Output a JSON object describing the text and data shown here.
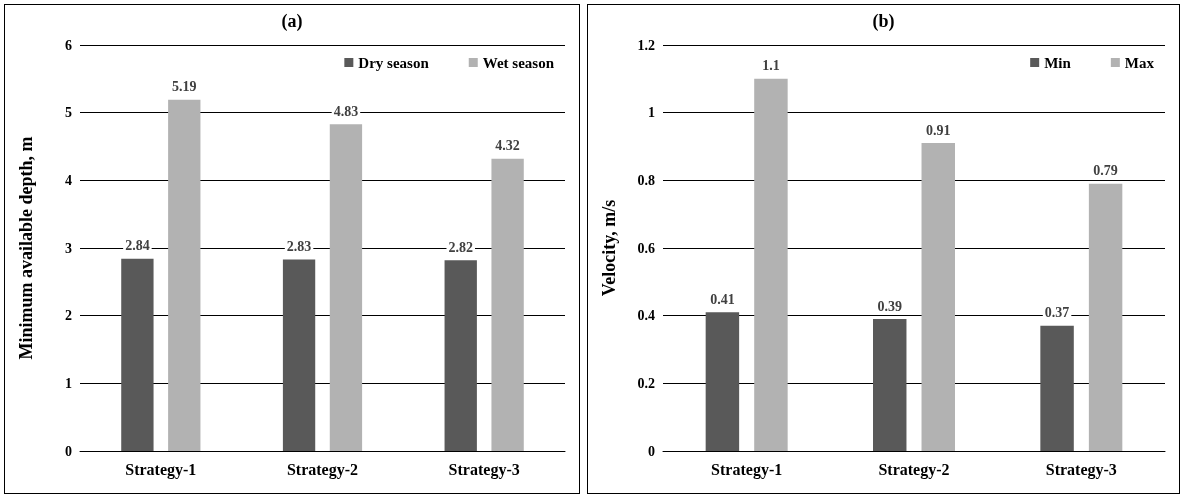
{
  "chart_data": [
    {
      "type": "bar",
      "title": "(a)",
      "ylabel": "Minimum available depth, m",
      "categories": [
        "Strategy-1",
        "Strategy-2",
        "Strategy-3"
      ],
      "series": [
        {
          "name": "Dry season",
          "color": "#595959",
          "values": [
            2.84,
            2.83,
            2.82
          ]
        },
        {
          "name": "Wet season",
          "color": "#b2b2b2",
          "values": [
            5.19,
            4.83,
            4.32
          ]
        }
      ],
      "ylim": [
        0,
        6
      ],
      "yticks": [
        0,
        1,
        2,
        3,
        4,
        5,
        6
      ],
      "grid": "y",
      "legend": "top right",
      "data_labels": true
    },
    {
      "type": "bar",
      "title": "(b)",
      "ylabel": "Velocity, m/s",
      "categories": [
        "Strategy-1",
        "Strategy-2",
        "Strategy-3"
      ],
      "series": [
        {
          "name": "Min",
          "color": "#595959",
          "values": [
            0.41,
            0.39,
            0.37
          ]
        },
        {
          "name": "Max",
          "color": "#b2b2b2",
          "values": [
            1.1,
            0.91,
            0.79
          ]
        }
      ],
      "ylim": [
        0,
        1.2
      ],
      "yticks": [
        0,
        0.2,
        0.4,
        0.6,
        0.8,
        1,
        1.2
      ],
      "grid": "y",
      "legend": "top right",
      "data_labels": true
    }
  ]
}
